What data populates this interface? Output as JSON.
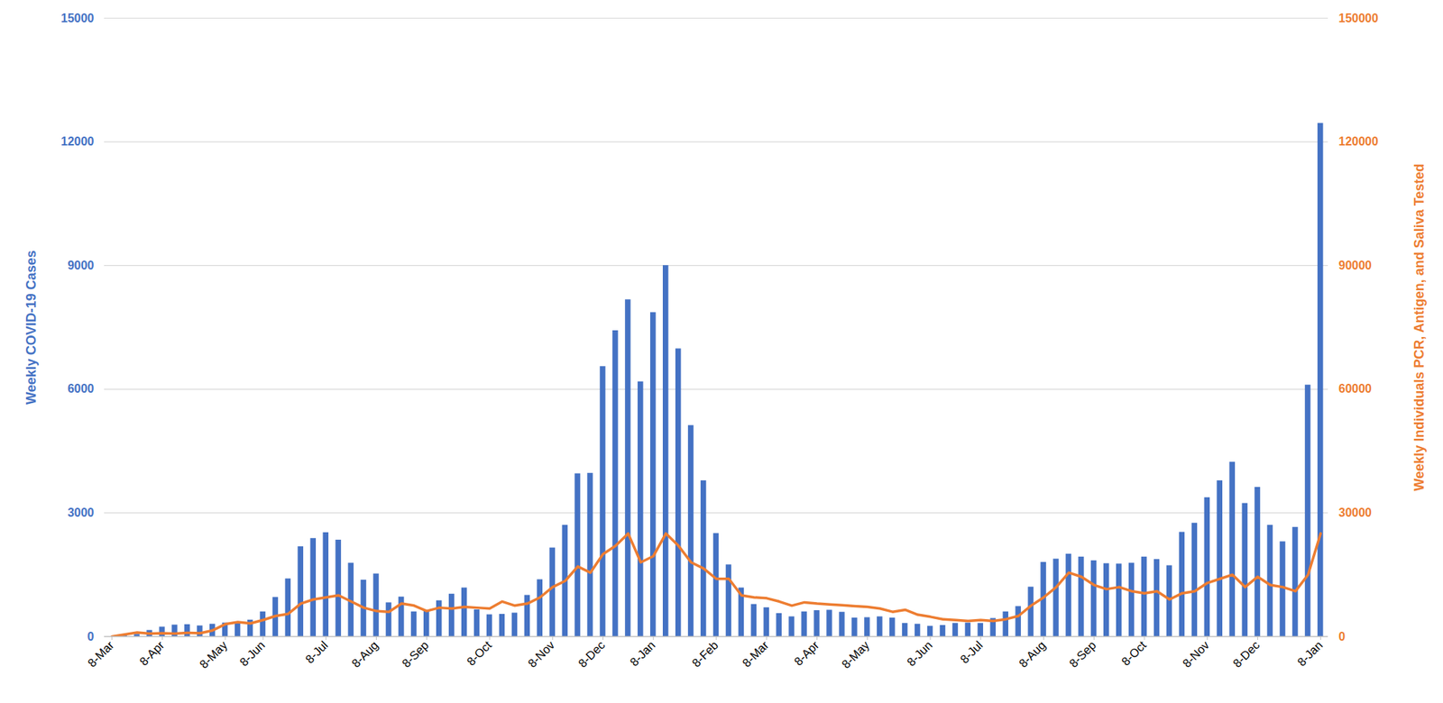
{
  "chart_data": {
    "type": "bar",
    "ylabel": "Weekly COVID-19 Cases",
    "y2label": "Weekly Individuals PCR, Antigen, and Saliva Tested",
    "categories": [
      "8-Mar",
      null,
      null,
      null,
      "8-Apr",
      null,
      null,
      null,
      null,
      "8-May",
      null,
      null,
      "8-Jun",
      null,
      null,
      null,
      null,
      "8-Jul",
      null,
      null,
      null,
      "8-Aug",
      null,
      null,
      null,
      "8-Sep",
      null,
      null,
      null,
      null,
      "8-Oct",
      null,
      null,
      null,
      null,
      "8-Nov",
      null,
      null,
      null,
      "8-Dec",
      null,
      null,
      null,
      "8-Jan",
      null,
      null,
      null,
      null,
      "8-Feb",
      null,
      null,
      null,
      "8-Mar",
      null,
      null,
      null,
      "8-Apr",
      null,
      null,
      null,
      "8-May",
      null,
      null,
      null,
      null,
      "8-Jun",
      null,
      null,
      null,
      "8-Jul",
      null,
      null,
      null,
      null,
      "8-Aug",
      null,
      null,
      null,
      "8-Sep",
      null,
      null,
      null,
      "8-Oct",
      null,
      null,
      null,
      null,
      "8-Nov",
      null,
      null,
      null,
      "8-Dec",
      null,
      null,
      null,
      null,
      "8-Jan"
    ],
    "series": [
      {
        "type": "bar",
        "color": "#4472c4",
        "values": [
          0,
          20,
          50,
          150,
          230,
          280,
          290,
          260,
          300,
          330,
          350,
          400,
          600,
          950,
          1400,
          2180,
          2380,
          2520,
          2340,
          1780,
          1370,
          1520,
          820,
          960,
          600,
          620,
          870,
          1030,
          1180,
          650,
          530,
          540,
          570,
          1000,
          1380,
          2150,
          2700,
          3950,
          3960,
          6550,
          7420,
          8170,
          6180,
          7860,
          9000,
          6980,
          5120,
          3780,
          2500,
          1740,
          1180,
          780,
          700,
          560,
          480,
          600,
          630,
          640,
          590,
          450,
          460,
          480,
          450,
          320,
          300,
          250,
          270,
          320,
          330,
          320,
          440,
          600,
          730,
          1200,
          1800,
          1880,
          2000,
          1930,
          1840,
          1770,
          1760,
          1780,
          1930,
          1870,
          1720,
          2530,
          2750,
          3370,
          3780,
          4230,
          3230,
          3620,
          2700,
          2300,
          2650,
          6100,
          12450
        ]
      },
      {
        "type": "line",
        "axis": "y2",
        "color": "#ed7d31",
        "values": [
          0,
          500,
          1000,
          700,
          800,
          700,
          900,
          800,
          1500,
          3000,
          3500,
          3200,
          4000,
          5000,
          5500,
          8000,
          9000,
          9500,
          10000,
          8500,
          7000,
          6200,
          6000,
          8000,
          7500,
          6200,
          7000,
          6800,
          7200,
          7000,
          6800,
          8500,
          7500,
          8000,
          9500,
          12000,
          13500,
          17000,
          15500,
          20000,
          22000,
          25000,
          18000,
          19500,
          25000,
          22000,
          18000,
          16500,
          14000,
          14000,
          10000,
          9500,
          9300,
          8500,
          7500,
          8300,
          8000,
          7800,
          7600,
          7400,
          7200,
          6800,
          6000,
          6500,
          5300,
          4800,
          4200,
          4000,
          3800,
          4000,
          3800,
          4200,
          5000,
          7500,
          9500,
          12000,
          15500,
          14500,
          12500,
          11500,
          12000,
          11000,
          10500,
          11000,
          9000,
          10500,
          11000,
          13000,
          14000,
          15000,
          12000,
          14500,
          12500,
          12000,
          11000,
          15000,
          25000
        ]
      }
    ],
    "ylim": [
      0,
      15000
    ],
    "yticks": [
      0,
      3000,
      6000,
      9000,
      12000,
      15000
    ],
    "y2lim": [
      0,
      150000
    ],
    "y2ticks": [
      0,
      30000,
      60000,
      90000,
      120000,
      150000
    ],
    "grid": true
  }
}
